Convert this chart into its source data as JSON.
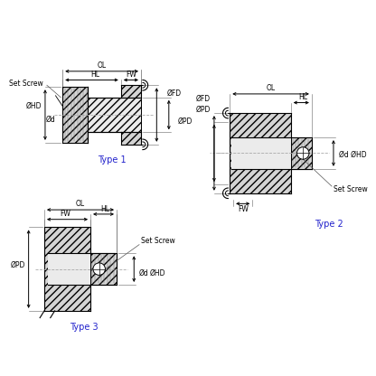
{
  "bg_color": "#ffffff",
  "line_color": "#000000",
  "type_color": "#2222cc",
  "hatch_fc": "#d4d4d4",
  "light_fc": "#ebebeb",
  "type1_label": "Type 1",
  "type2_label": "Type 2",
  "type3_label": "Type 3"
}
